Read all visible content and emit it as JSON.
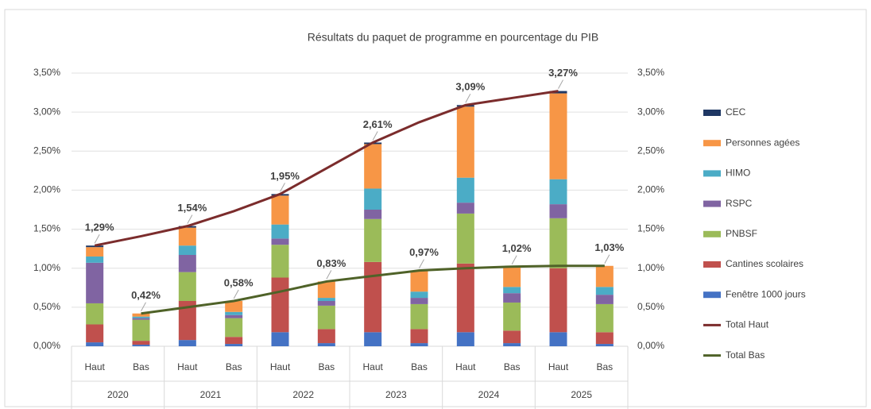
{
  "chart_data": {
    "type": "bar",
    "stacked": true,
    "title": "Résultats du paquet de programme en pourcentage du PIB",
    "categories": [
      "Haut",
      "Bas",
      "Haut",
      "Bas",
      "Haut",
      "Bas",
      "Haut",
      "Bas",
      "Haut",
      "Bas",
      "Haut",
      "Bas"
    ],
    "groups": [
      "2020",
      "2021",
      "2022",
      "2023",
      "2024",
      "2025"
    ],
    "ylim": [
      0,
      3.5
    ],
    "yticks": [
      {
        "value": 0,
        "label": "0,00%"
      },
      {
        "value": 0.5,
        "label": "0,50%"
      },
      {
        "value": 1,
        "label": "1,00%"
      },
      {
        "value": 1.5,
        "label": "1,50%"
      },
      {
        "value": 2,
        "label": "2,00%"
      },
      {
        "value": 2.5,
        "label": "2,50%"
      },
      {
        "value": 3,
        "label": "3,00%"
      },
      {
        "value": 3.5,
        "label": "3,50%"
      }
    ],
    "y2lim": [
      0,
      3.5
    ],
    "y2ticks": [
      {
        "value": 0,
        "label": "0,00%"
      },
      {
        "value": 0.5,
        "label": "0,50%"
      },
      {
        "value": 1,
        "label": "1,00%"
      },
      {
        "value": 1.5,
        "label": "1,50%"
      },
      {
        "value": 2,
        "label": "2,00%"
      },
      {
        "value": 2.5,
        "label": "2,50%"
      },
      {
        "value": 3,
        "label": "3,00%"
      },
      {
        "value": 3.5,
        "label": "3,50%"
      }
    ],
    "grid": true,
    "legend": "right",
    "series": [
      {
        "name": "Fenêtre 1000 jours",
        "type": "bar",
        "color": "#4472c4",
        "values": [
          0.05,
          0.02,
          0.08,
          0.03,
          0.18,
          0.04,
          0.18,
          0.04,
          0.18,
          0.04,
          0.18,
          0.03
        ]
      },
      {
        "name": "Cantines scolaires",
        "type": "bar",
        "color": "#c0504d",
        "values": [
          0.23,
          0.05,
          0.5,
          0.09,
          0.7,
          0.18,
          0.9,
          0.18,
          0.88,
          0.16,
          0.82,
          0.15
        ]
      },
      {
        "name": "PNBSF",
        "type": "bar",
        "color": "#9bbb59",
        "values": [
          0.27,
          0.27,
          0.37,
          0.24,
          0.42,
          0.3,
          0.55,
          0.32,
          0.64,
          0.36,
          0.64,
          0.36
        ]
      },
      {
        "name": "RSPC",
        "type": "bar",
        "color": "#8064a2",
        "values": [
          0.52,
          0.02,
          0.22,
          0.04,
          0.08,
          0.06,
          0.12,
          0.08,
          0.14,
          0.12,
          0.18,
          0.12
        ]
      },
      {
        "name": "HIMO",
        "type": "bar",
        "color": "#4bacc6",
        "values": [
          0.08,
          0.02,
          0.12,
          0.04,
          0.18,
          0.04,
          0.27,
          0.08,
          0.32,
          0.08,
          0.32,
          0.1
        ]
      },
      {
        "name": "Personnes agées",
        "type": "bar",
        "color": "#f79646",
        "values": [
          0.12,
          0.04,
          0.23,
          0.14,
          0.37,
          0.21,
          0.57,
          0.27,
          0.91,
          0.26,
          1.1,
          0.27
        ]
      },
      {
        "name": "CEC",
        "type": "bar",
        "color": "#1f3864",
        "values": [
          0.02,
          0,
          0.02,
          0,
          0.02,
          0,
          0.02,
          0,
          0.02,
          0,
          0.03,
          0
        ]
      },
      {
        "name": "Total Haut",
        "type": "line",
        "axis": "y2",
        "color": "#7b2c2c",
        "values": [
          1.29,
          1.41,
          1.54,
          1.73,
          1.95,
          2.28,
          2.61,
          2.87,
          3.09,
          3.18,
          3.27,
          null
        ],
        "value_labels": [
          "1,29%",
          null,
          "1,54%",
          null,
          "1,95%",
          null,
          "2,61%",
          null,
          "3,09%",
          null,
          "3,27%",
          null
        ]
      },
      {
        "name": "Total Bas",
        "type": "line",
        "axis": "y2",
        "color": "#4f6228",
        "values": [
          null,
          0.42,
          0.5,
          0.58,
          0.7,
          0.83,
          0.9,
          0.97,
          1,
          1.02,
          1.03,
          1.03
        ],
        "value_labels": [
          null,
          "0,42%",
          null,
          "0,58%",
          null,
          "0,83%",
          null,
          "0,97%",
          null,
          "1,02%",
          null,
          "1,03%"
        ]
      }
    ]
  }
}
